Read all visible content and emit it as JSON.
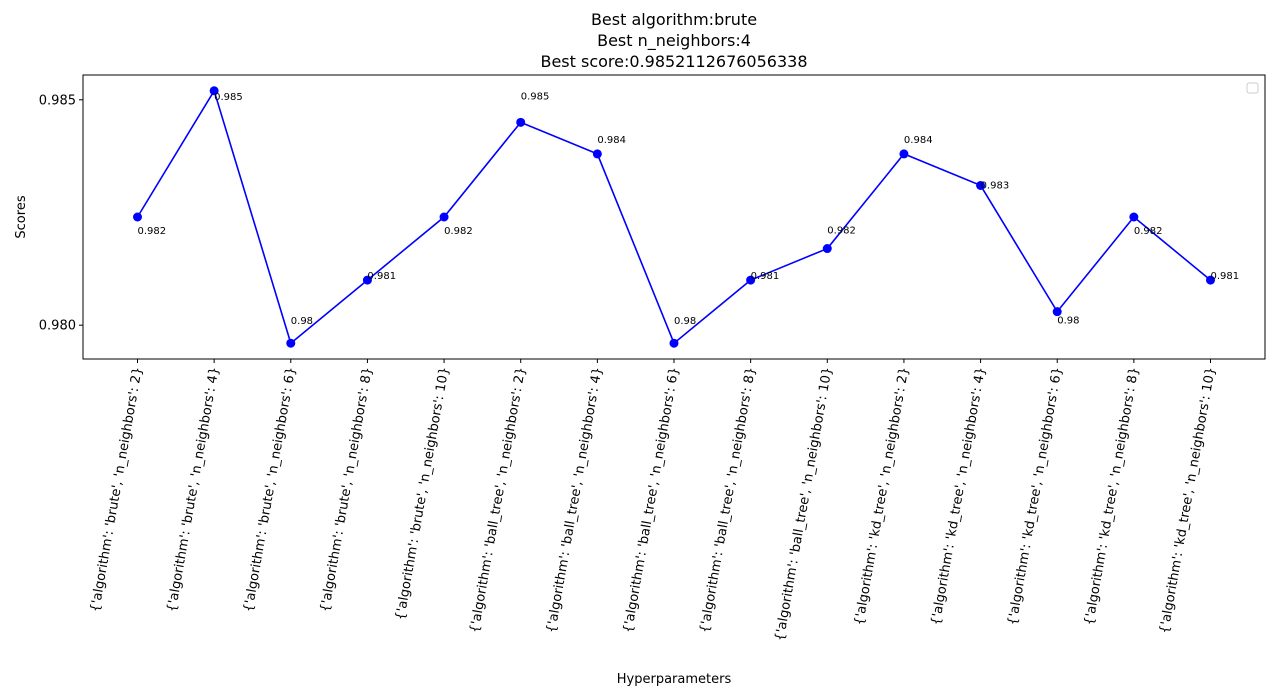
{
  "chart_data": {
    "type": "line",
    "title_lines": [
      "Best algorithm:brute",
      "Best n_neighbors:4",
      "Best score:0.9852112676056338"
    ],
    "xlabel": "Hyperparameters",
    "ylabel": "Scores",
    "categories": [
      "{'algorithm': 'brute', 'n_neighbors': 2}",
      "{'algorithm': 'brute', 'n_neighbors': 4}",
      "{'algorithm': 'brute', 'n_neighbors': 6}",
      "{'algorithm': 'brute', 'n_neighbors': 8}",
      "{'algorithm': 'brute', 'n_neighbors': 10}",
      "{'algorithm': 'ball_tree', 'n_neighbors': 2}",
      "{'algorithm': 'ball_tree', 'n_neighbors': 4}",
      "{'algorithm': 'ball_tree', 'n_neighbors': 6}",
      "{'algorithm': 'ball_tree', 'n_neighbors': 8}",
      "{'algorithm': 'ball_tree', 'n_neighbors': 10}",
      "{'algorithm': 'kd_tree', 'n_neighbors': 2}",
      "{'algorithm': 'kd_tree', 'n_neighbors': 4}",
      "{'algorithm': 'kd_tree', 'n_neighbors': 6}",
      "{'algorithm': 'kd_tree', 'n_neighbors': 8}",
      "{'algorithm': 'kd_tree', 'n_neighbors': 10}"
    ],
    "values": [
      0.9824,
      0.9852,
      0.9796,
      0.981,
      0.9824,
      0.9845,
      0.9838,
      0.9796,
      0.981,
      0.9817,
      0.9838,
      0.9831,
      0.9803,
      0.9824,
      0.981
    ],
    "data_labels": [
      "0.982",
      "0.985",
      "0.98",
      "0.981",
      "0.982",
      "0.985",
      "0.984",
      "0.98",
      "0.981",
      "0.982",
      "0.984",
      "0.983",
      "0.98",
      "0.982",
      "0.981"
    ],
    "label_offsets": [
      [
        0,
        -14
      ],
      [
        0,
        -6
      ],
      [
        0,
        22
      ],
      [
        0,
        4
      ],
      [
        0,
        -14
      ],
      [
        0,
        26
      ],
      [
        0,
        14
      ],
      [
        0,
        22
      ],
      [
        0,
        4
      ],
      [
        0,
        18
      ],
      [
        0,
        14
      ],
      [
        0,
        0
      ],
      [
        0,
        -9
      ],
      [
        0,
        -14
      ],
      [
        0,
        4
      ]
    ],
    "ylim": [
      0.97925,
      0.98555
    ],
    "yticks": [
      0.98,
      0.985
    ],
    "ytick_labels": [
      "0.980",
      "0.985"
    ],
    "line_color": "#0000ff",
    "marker": "circle",
    "legend": {
      "position": "top-right",
      "entries": []
    },
    "grid": false
  }
}
